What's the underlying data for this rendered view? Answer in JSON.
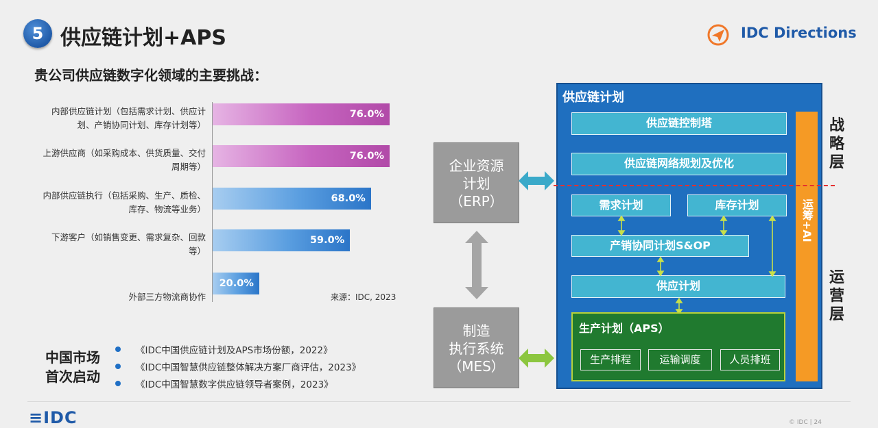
{
  "header": {
    "number": "5",
    "title": "供应链计划+APS",
    "brand": "IDC Directions"
  },
  "subtitle": "贵公司供应链数字化领域的主要挑战：",
  "chart_data": {
    "type": "bar",
    "orientation": "horizontal",
    "categories": [
      "内部供应链计划（包括需求计划、供应计划、产销协同计划、库存计划等）",
      "上游供应商（如采购成本、供货质量、交付周期等）",
      "内部供应链执行（包括采购、生产、质检、库存、物流等业务）",
      "下游客户（如销售变更、需求复杂、回款等）",
      "外部三方物流商协作"
    ],
    "label_lines": [
      [
        "内部供应链计划（包括需求计划、供应计",
        "划、产销协同计划、库存计划等）"
      ],
      [
        "上游供应商（如采购成本、供货质量、交付",
        "周期等）"
      ],
      [
        "内部供应链执行（包括采购、生产、质检、",
        "库存、物流等业务）"
      ],
      [
        "下游客户（如销售变更、需求复杂、回款",
        "等）"
      ],
      [
        "外部三方物流商协作"
      ]
    ],
    "values": [
      76.0,
      76.0,
      68.0,
      59.0,
      20.0
    ],
    "value_labels": [
      "76.0%",
      "76.0%",
      "68.0%",
      "59.0%",
      "20.0%"
    ],
    "colors": [
      "#c765c0",
      "#c765c0",
      "#2b75c8",
      "#2b75c8",
      "#2b75c8"
    ],
    "xlim": [
      0,
      100
    ],
    "source": "来源：IDC, 2023"
  },
  "market": {
    "label_line1": "中国市场",
    "label_line2": "首次启动",
    "reports": [
      "《IDC中国供应链计划及APS市场份额，2022》",
      "《IDC中国智慧供应链整体解决方案厂商评估，2023》",
      "《IDC中国智慧数字供应链领导者案例，2023》"
    ]
  },
  "erp": {
    "line1": "企业资源",
    "line2": "计划",
    "line3": "（ERP）"
  },
  "mes": {
    "line1": "制造",
    "line2": "执行系统",
    "line3": "（MES）"
  },
  "supply_chain": {
    "title": "供应链计划",
    "control_tower": "供应链控制塔",
    "network_planning": "供应链网络规划及优化",
    "demand_planning": "需求计划",
    "inventory_planning": "库存计划",
    "sop": "产销协同计划S&OP",
    "supply_planning": "供应计划",
    "aps_title": "生产计划（APS）",
    "aps_items": [
      "生产排程",
      "运输调度",
      "人员排班"
    ],
    "ops_ai": "运筹+AI",
    "strategic_layer": [
      "战",
      "略",
      "层"
    ],
    "operational_layer": [
      "运",
      "营",
      "层"
    ]
  },
  "footer": {
    "logo": "≡IDC",
    "copyright": "© IDC |   24"
  },
  "colors": {
    "accent_blue": "#1f6fbf",
    "teal": "#43b5d1",
    "orange": "#f59a25",
    "green": "#207a2f",
    "purple_bar": "#c765c0",
    "blue_bar": "#2b75c8",
    "arrow_teal": "#3aa9c9",
    "arrow_grey": "#a5a5a5",
    "arrow_green": "#8cc63f",
    "divider_red": "#e53030"
  }
}
